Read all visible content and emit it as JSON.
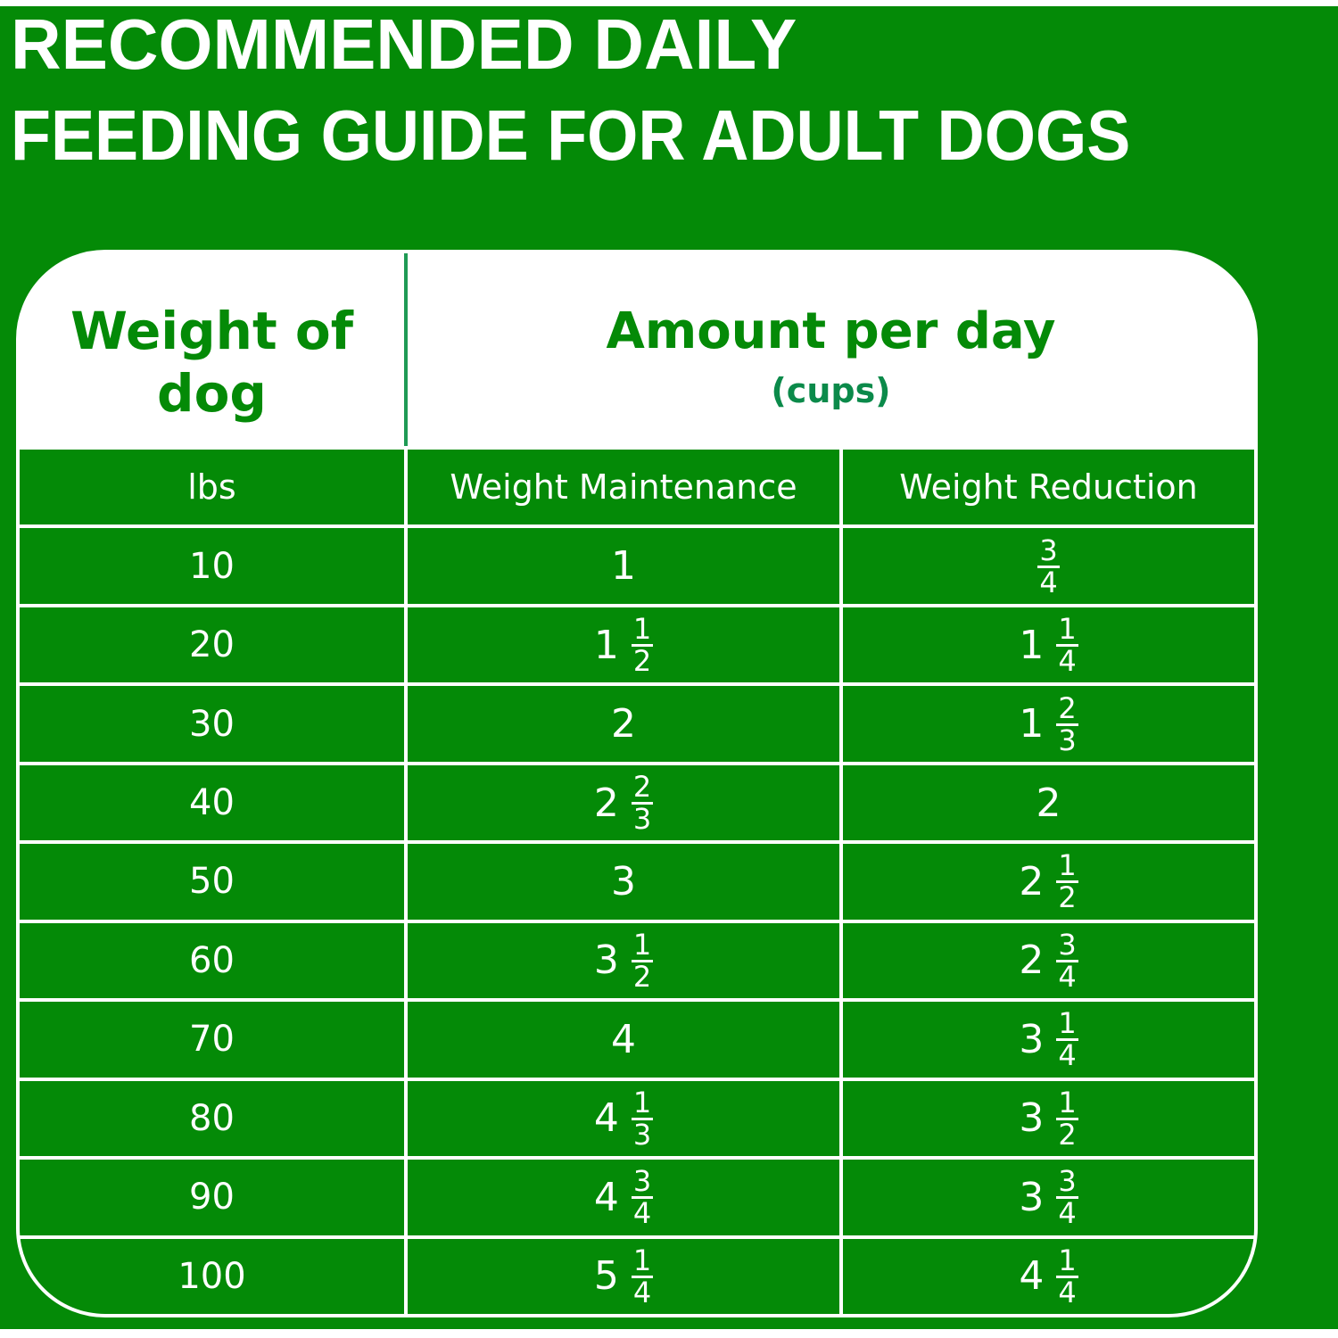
{
  "title": {
    "line1": "RECOMMENDED DAILY",
    "line2": "FEEDING GUIDE FOR ADULT DOGS"
  },
  "header": {
    "weight_line1": "Weight of",
    "weight_line2": "dog",
    "amount": "Amount per day",
    "unit": "(cups)"
  },
  "columns": [
    "lbs",
    "Weight Maintenance",
    "Weight Reduction"
  ],
  "rows": [
    {
      "lbs": "10",
      "maintenance": {
        "whole": "1"
      },
      "reduction": {
        "num": "3",
        "den": "4"
      }
    },
    {
      "lbs": "20",
      "maintenance": {
        "whole": "1",
        "num": "1",
        "den": "2"
      },
      "reduction": {
        "whole": "1",
        "num": "1",
        "den": "4"
      }
    },
    {
      "lbs": "30",
      "maintenance": {
        "whole": "2"
      },
      "reduction": {
        "whole": "1",
        "num": "2",
        "den": "3"
      }
    },
    {
      "lbs": "40",
      "maintenance": {
        "whole": "2",
        "num": "2",
        "den": "3"
      },
      "reduction": {
        "whole": "2"
      }
    },
    {
      "lbs": "50",
      "maintenance": {
        "whole": "3"
      },
      "reduction": {
        "whole": "2",
        "num": "1",
        "den": "2"
      }
    },
    {
      "lbs": "60",
      "maintenance": {
        "whole": "3",
        "num": "1",
        "den": "2"
      },
      "reduction": {
        "whole": "2",
        "num": "3",
        "den": "4"
      }
    },
    {
      "lbs": "70",
      "maintenance": {
        "whole": "4"
      },
      "reduction": {
        "whole": "3",
        "num": "1",
        "den": "4"
      }
    },
    {
      "lbs": "80",
      "maintenance": {
        "whole": "4",
        "num": "1",
        "den": "3"
      },
      "reduction": {
        "whole": "3",
        "num": "1",
        "den": "2"
      }
    },
    {
      "lbs": "90",
      "maintenance": {
        "whole": "4",
        "num": "3",
        "den": "4"
      },
      "reduction": {
        "whole": "3",
        "num": "3",
        "den": "4"
      }
    },
    {
      "lbs": "100",
      "maintenance": {
        "whole": "5",
        "num": "1",
        "den": "4"
      },
      "reduction": {
        "whole": "4",
        "num": "1",
        "den": "4"
      }
    }
  ],
  "colors": {
    "background": "#048a07",
    "text_light": "#ffffff",
    "divider": "#1f9a55",
    "unit": "#0b8a4a"
  }
}
